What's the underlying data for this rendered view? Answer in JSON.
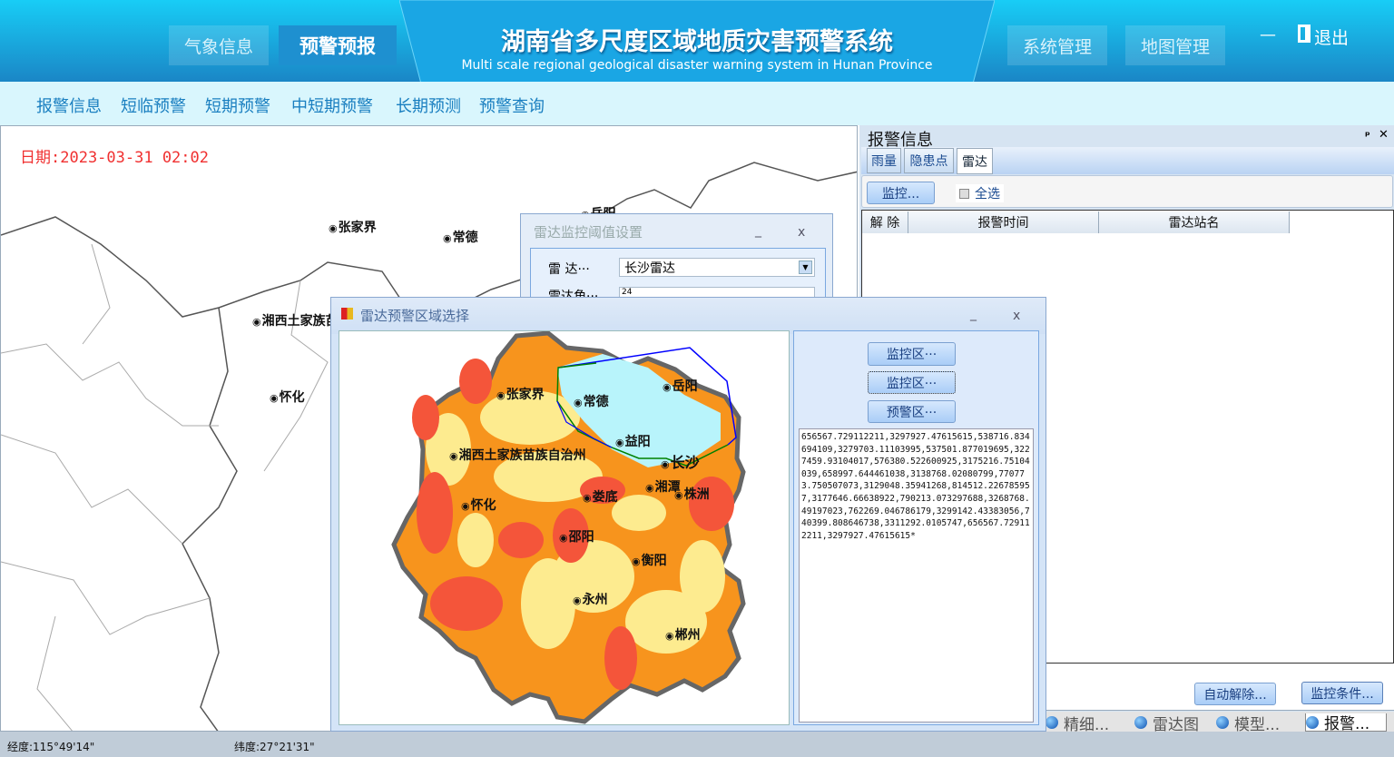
{
  "header": {
    "title": "湖南省多尺度区域地质灾害预警系统",
    "subtitle": "Multi scale regional geological disaster warning system in Hunan Province",
    "left_buttons": [
      "气象信息",
      "预警预报"
    ],
    "right_buttons": [
      "系统管理",
      "地图管理"
    ],
    "minimize": "—",
    "logout": "退出",
    "active": "预警预报"
  },
  "nav": {
    "items": [
      "报警信息",
      "短临预警",
      "短期预警",
      "中短期预警",
      "长期预测",
      "预警查询"
    ]
  },
  "map": {
    "date": "日期:2023-03-31 02:02",
    "cities": [
      "张家界",
      "常德",
      "岳阳",
      "湘西土家族苗",
      "怀化"
    ]
  },
  "alert_panel": {
    "title": "报警信息",
    "pin": "ᵖ",
    "close": "✕",
    "tabs": [
      "雨量",
      "隐患点",
      "雷达"
    ],
    "active_tab": "雷达",
    "monitor_button": "监控...",
    "select_all": "全选",
    "columns": [
      "解 除",
      "报警时间",
      "雷达站名"
    ],
    "auto_release": "自动解除...",
    "monitor_condition": "监控条件..."
  },
  "bottom_tabs": [
    "精细...",
    "雷达图",
    "模型...",
    "报警..."
  ],
  "status": {
    "longitude": "经度:115°49'14\"",
    "latitude": "纬度:27°21'31\""
  },
  "threshold_dialog": {
    "title": "雷达监控阈值设置",
    "radar_label": "雷  达···",
    "radar_value": "长沙雷达",
    "angle_label": "雷达角···",
    "angle_value": "24"
  },
  "region_dialog": {
    "title": "雷达预警区域选择",
    "buttons": [
      "监控区···",
      "监控区···",
      "预警区···"
    ],
    "cities": [
      "张家界",
      "常德",
      "岳阳",
      "益阳",
      "长沙",
      "湘西土家族苗族自治州",
      "湘潭",
      "株洲",
      "娄底",
      "怀化",
      "邵阳",
      "衡阳",
      "永州",
      "郴州"
    ],
    "coordinates": "656567.729112211,3297927.47615615,538716.834694109,3279703.11103995,537501.877019695,3227459.93104017,576380.522600925,3175216.75104039,658997.644461038,3138768.02080799,770773.750507073,3129048.35941268,814512.226785957,3177646.66638922,790213.073297688,3268768.49197023,762269.046786179,3299142.43383056,740399.808646738,3311292.0105747,656567.729112211,3297927.47615615*"
  },
  "colors": {
    "header_top": "#18cdf6",
    "header_bottom": "#1a86c6",
    "nav_bg": "#d9f6fd",
    "date": "#f03030",
    "risk_high": "#f4553a",
    "risk_mid": "#f7941d",
    "risk_low": "#fdeb8f",
    "water": "#b8f4fb",
    "monitor_line": "#0000ff",
    "warning_line": "#008000"
  }
}
